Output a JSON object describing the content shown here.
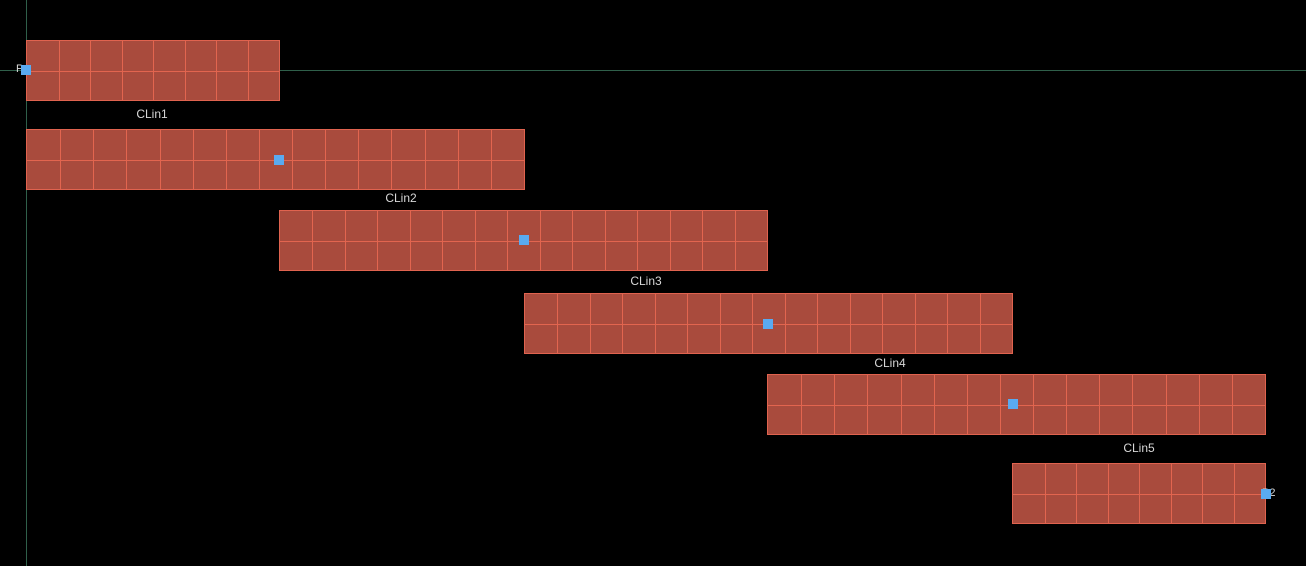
{
  "canvas": {
    "background": "#000000",
    "axis_color": "#2f5f4a"
  },
  "ports": {
    "start_label": "P",
    "end_label": "P2"
  },
  "blocks": [
    {
      "label": "CLin1",
      "rows": 2,
      "cols": 8
    },
    {
      "label": "CLin2",
      "rows": 2,
      "cols": 15
    },
    {
      "label": "CLin3",
      "rows": 2,
      "cols": 15
    },
    {
      "label": "CLin4",
      "rows": 2,
      "cols": 15
    },
    {
      "label": "CLin5",
      "rows": 2,
      "cols": 15
    },
    {
      "label": "",
      "rows": 2,
      "cols": 8
    }
  ],
  "colors": {
    "block_fill": "#a94b3d",
    "block_grid": "#e2654f",
    "port": "#5aaaf0",
    "label": "#d8d8d8"
  }
}
